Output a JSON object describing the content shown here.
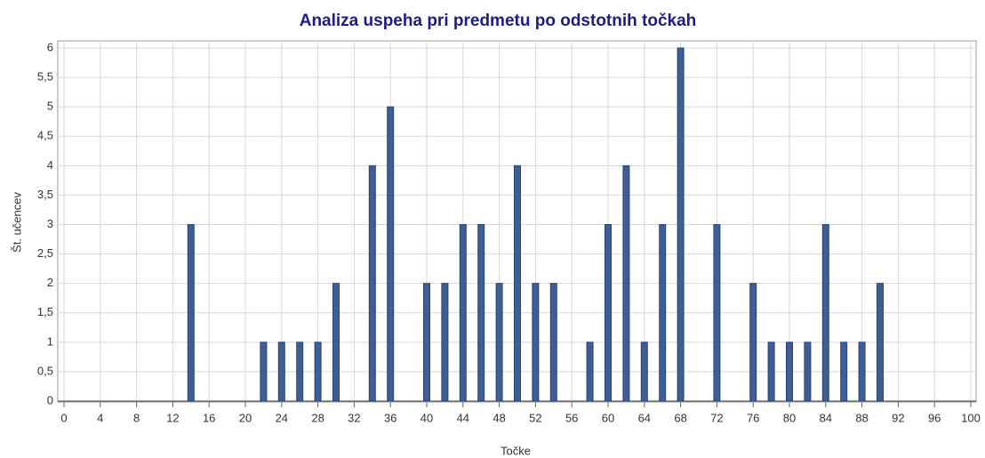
{
  "chart_data": {
    "type": "bar",
    "title": "Analiza uspeha pri predmetu po odstotnih točkah",
    "xlabel": "Točke",
    "ylabel": "Št. učencev",
    "x": [
      14,
      22,
      24,
      26,
      28,
      30,
      34,
      36,
      40,
      42,
      44,
      46,
      48,
      50,
      52,
      54,
      58,
      60,
      62,
      64,
      66,
      68,
      72,
      76,
      78,
      80,
      82,
      84,
      86,
      88,
      90
    ],
    "values": [
      3,
      1,
      1,
      1,
      1,
      2,
      4,
      5,
      2,
      2,
      3,
      3,
      2,
      4,
      2,
      2,
      1,
      3,
      4,
      1,
      3,
      6,
      3,
      2,
      1,
      1,
      1,
      3,
      1,
      1,
      2
    ],
    "color": "#3f5f94",
    "xlim": [
      0,
      100
    ],
    "xticks": [
      0,
      4,
      8,
      12,
      16,
      20,
      24,
      28,
      32,
      36,
      40,
      44,
      48,
      52,
      56,
      60,
      64,
      68,
      72,
      76,
      80,
      84,
      88,
      92,
      96,
      100
    ],
    "ylim": [
      0,
      6
    ],
    "yticks": [
      0,
      {
        "value": 0.5,
        "label": "0,5"
      },
      1,
      {
        "value": 1.5,
        "label": "1,5"
      },
      2,
      {
        "value": 2.5,
        "label": "2,5"
      },
      3,
      {
        "value": 3.5,
        "label": "3,5"
      },
      4,
      {
        "value": 4.5,
        "label": "4,5"
      },
      5,
      {
        "value": 5.5,
        "label": "5,5"
      },
      6
    ],
    "grid": true
  }
}
